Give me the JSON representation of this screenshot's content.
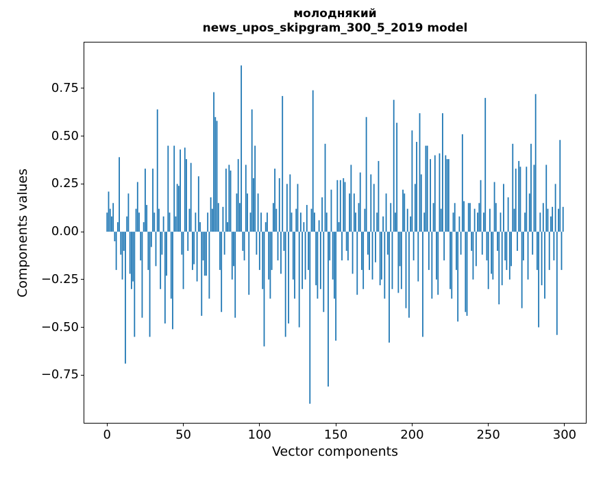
{
  "figure": {
    "title_line1": "молоднякий",
    "title_line2": "news_upos_skipgram_300_5_2019 model",
    "xlabel": "Vector components",
    "ylabel": "Components values"
  },
  "chart_data": {
    "type": "bar",
    "title": "молоднякий — news_upos_skipgram_300_5_2019 model",
    "xlabel": "Vector components",
    "ylabel": "Components values",
    "bar_color": "#1f77b4",
    "background": "#ffffff",
    "grid": false,
    "legend": null,
    "x_start": 0,
    "xlim": [
      -14.95,
      313.95
    ],
    "ylim": [
      -1.0,
      0.99
    ],
    "xticks": [
      0,
      50,
      100,
      150,
      200,
      250,
      300
    ],
    "xtick_labels": [
      "0",
      "50",
      "100",
      "150",
      "200",
      "250",
      "300"
    ],
    "yticks": [
      -0.75,
      -0.5,
      -0.25,
      0,
      0.25,
      0.5,
      0.75
    ],
    "ytick_labels": [
      "−0.75",
      "−0.50",
      "−0.25",
      "0.00",
      "0.25",
      "0.50",
      "0.75"
    ],
    "values": [
      0.1,
      0.21,
      0.12,
      0.08,
      0.15,
      -0.05,
      -0.2,
      0.05,
      0.39,
      -0.12,
      -0.25,
      -0.1,
      -0.69,
      0.08,
      0.2,
      -0.22,
      -0.3,
      -0.26,
      -0.55,
      0.12,
      0.26,
      0.1,
      -0.15,
      -0.45,
      0.05,
      0.33,
      0.14,
      -0.2,
      -0.55,
      -0.08,
      0.33,
      0.1,
      -0.18,
      0.64,
      0.12,
      -0.3,
      -0.12,
      0.08,
      -0.48,
      -0.23,
      0.45,
      0.1,
      -0.35,
      -0.51,
      0.45,
      0.08,
      0.25,
      0.24,
      0.43,
      -0.12,
      -0.3,
      0.44,
      0.38,
      -0.1,
      0.12,
      0.36,
      -0.2,
      -0.17,
      0.1,
      -0.26,
      0.29,
      0.05,
      -0.44,
      -0.15,
      -0.23,
      -0.23,
      0.1,
      -0.35,
      0.18,
      0.12,
      0.73,
      0.6,
      0.58,
      0.15,
      -0.2,
      -0.42,
      0.13,
      -0.12,
      0.33,
      0.05,
      0.35,
      0.32,
      -0.25,
      -0.18,
      -0.45,
      0.2,
      0.38,
      0.15,
      0.87,
      -0.1,
      -0.15,
      0.35,
      0.2,
      -0.33,
      0.1,
      0.64,
      0.28,
      0.45,
      -0.12,
      0.2,
      -0.2,
      0.1,
      -0.3,
      -0.6,
      0.05,
      0.1,
      -0.25,
      -0.35,
      -0.2,
      0.15,
      0.33,
      0.12,
      -0.15,
      0.28,
      -0.22,
      0.71,
      -0.1,
      -0.55,
      0.25,
      -0.48,
      0.3,
      0.1,
      -0.25,
      -0.35,
      0.12,
      0.25,
      -0.5,
      0.1,
      -0.3,
      0.05,
      -0.25,
      0.14,
      -0.2,
      -0.9,
      0.12,
      0.74,
      0.1,
      -0.28,
      -0.35,
      0.06,
      -0.3,
      0.18,
      -0.42,
      0.46,
      0.1,
      -0.81,
      -0.15,
      0.22,
      -0.25,
      -0.35,
      -0.57,
      0.27,
      0.05,
      0.27,
      -0.15,
      0.28,
      0.26,
      -0.1,
      -0.15,
      0.2,
      0.35,
      -0.22,
      0.2,
      0.1,
      -0.33,
      0.15,
      0.31,
      -0.2,
      -0.3,
      0.12,
      0.6,
      -0.12,
      -0.2,
      0.3,
      -0.25,
      0.25,
      -0.16,
      0.1,
      0.37,
      -0.28,
      -0.25,
      0.08,
      -0.35,
      0.2,
      -0.12,
      -0.58,
      0.15,
      -0.3,
      0.69,
      0.1,
      0.57,
      -0.32,
      -0.18,
      -0.3,
      0.22,
      0.2,
      -0.4,
      0.12,
      -0.45,
      0.08,
      0.53,
      -0.15,
      0.25,
      0.47,
      -0.26,
      0.62,
      0.3,
      -0.55,
      0.1,
      0.45,
      0.45,
      -0.2,
      0.38,
      -0.35,
      0.15,
      0.4,
      -0.25,
      -0.33,
      0.41,
      0.12,
      0.62,
      -0.15,
      0.4,
      0.38,
      0.38,
      -0.3,
      -0.35,
      0.1,
      0.15,
      -0.2,
      -0.47,
      0.08,
      -0.12,
      0.51,
      0.16,
      -0.42,
      -0.44,
      0.15,
      0.15,
      -0.1,
      -0.25,
      0.12,
      -0.18,
      0.1,
      0.15,
      0.27,
      -0.12,
      0.1,
      0.7,
      -0.15,
      -0.3,
      0.12,
      -0.22,
      -0.25,
      0.26,
      0.15,
      -0.1,
      -0.38,
      0.1,
      -0.28,
      0.25,
      -0.15,
      -0.2,
      0.18,
      -0.25,
      -0.18,
      0.46,
      0.12,
      0.33,
      -0.1,
      0.37,
      0.34,
      -0.4,
      -0.15,
      0.1,
      0.34,
      -0.25,
      0.2,
      0.46,
      -0.12,
      0.35,
      0.72,
      -0.2,
      -0.5,
      0.1,
      -0.28,
      0.15,
      -0.35,
      0.35,
      0.12,
      -0.2,
      0.08,
      0.13,
      -0.15,
      0.25,
      -0.54,
      0.12,
      0.48,
      -0.2,
      0.13
    ]
  }
}
